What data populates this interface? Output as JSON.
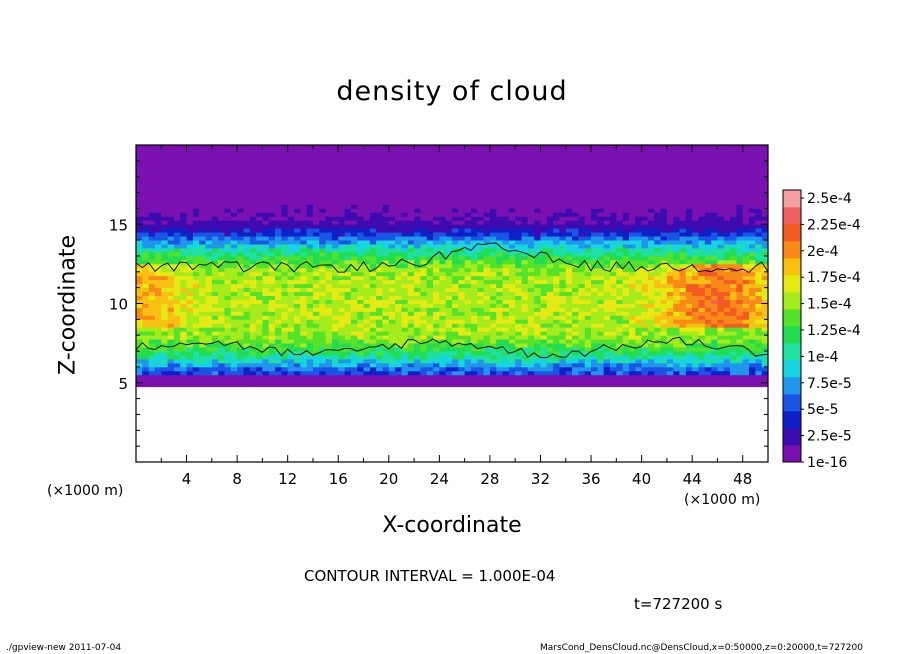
{
  "chart_data": {
    "type": "heatmap",
    "title": "density of cloud",
    "xlabel": "X-coordinate",
    "ylabel": "Z-coordinate",
    "x_unit": "(×1000 m)",
    "xlim": [
      0,
      50
    ],
    "ylim": [
      0,
      20
    ],
    "x_ticks": [
      4,
      8,
      12,
      16,
      20,
      24,
      28,
      32,
      36,
      40,
      44,
      48
    ],
    "y_ticks": [
      5,
      10,
      15
    ],
    "colorbar": {
      "labels": [
        "1e-16",
        "2.5e-5",
        "5e-5",
        "7.5e-5",
        "1e-4",
        "1.25e-4",
        "1.5e-4",
        "1.75e-4",
        "2e-4",
        "2.25e-4",
        "2.5e-4"
      ],
      "colors": [
        "#7a10b0",
        "#3d0bb0",
        "#1020c8",
        "#1a55e6",
        "#1f95ec",
        "#18d4e0",
        "#1ee0a0",
        "#22dc52",
        "#55e22a",
        "#a6ec1c",
        "#e6ea14",
        "#f8c012",
        "#f88a18",
        "#f45b22",
        "#f06060",
        "#f5a0a0"
      ]
    },
    "cloud_band": {
      "base_z": 5,
      "top_z": 20,
      "core_z": [
        7,
        13
      ],
      "max_value": 0.00022,
      "high_core_x": [
        42,
        50
      ],
      "contour_interval": 0.0001
    }
  },
  "annotations": {
    "contour_interval": "CONTOUR INTERVAL = 1.000E-04",
    "time": "t=727200 s"
  },
  "footer": {
    "left": "./gpview-new  2011-07-04",
    "right": "MarsCond_DensCloud.nc@DensCloud,x=0:50000,z=0:20000,t=727200"
  }
}
